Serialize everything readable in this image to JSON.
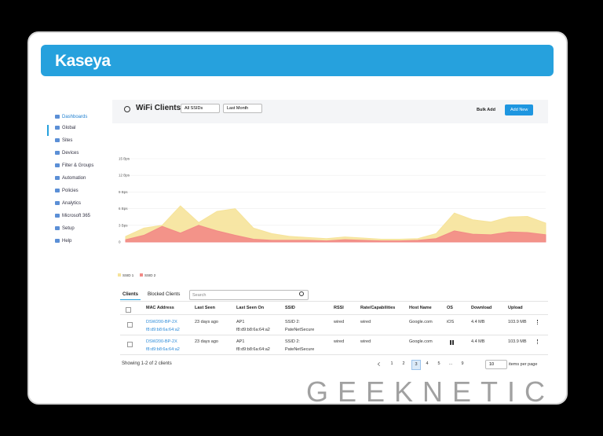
{
  "header": {
    "brand": "Kaseya"
  },
  "sidebar": {
    "items": [
      "Dashboards",
      "Global",
      "Sites",
      "Devices",
      "Filter & Groups",
      "Automation",
      "Policies",
      "Analytics",
      "Microsoft 365",
      "Setup",
      "Help"
    ]
  },
  "toolbar": {
    "title": "WiFi Clients",
    "ssid_filter": "All SSIDs",
    "period_filter": "Last Month",
    "bulk_add": "Bulk Add",
    "add_new": "Add New"
  },
  "chart": {
    "type": "area",
    "ylim": [
      0,
      15
    ],
    "yticks": [
      {
        "value": 0,
        "label": "0"
      },
      {
        "value": 3,
        "label": "3 Bps"
      },
      {
        "value": 6,
        "label": "6 Bps"
      },
      {
        "value": 9,
        "label": "9 Bps"
      },
      {
        "value": 12,
        "label": "12 Bps"
      },
      {
        "value": 15,
        "label": "15 Bps"
      }
    ],
    "series": [
      {
        "name": "SSID 1",
        "color": "#f6e39a",
        "values": [
          1,
          2.5,
          3,
          6.5,
          3.5,
          5.5,
          6,
          2.5,
          1.5,
          1,
          0.8,
          0.6,
          0.9,
          0.7,
          0.5,
          0.5,
          0.6,
          1.5,
          5.2,
          4,
          3.6,
          4.5,
          4.6,
          3.4
        ]
      },
      {
        "name": "SSID 2",
        "color": "#f28a86",
        "values": [
          0.4,
          1.2,
          2.8,
          1.6,
          3,
          2,
          1.2,
          0.5,
          0.3,
          0.3,
          0.3,
          0.2,
          0.4,
          0.3,
          0.2,
          0.2,
          0.3,
          0.6,
          2,
          1.4,
          1.3,
          1.8,
          1.7,
          1.3
        ]
      }
    ]
  },
  "table": {
    "tabs": [
      "Clients",
      "Blocked Clients"
    ],
    "search_placeholder": "Search",
    "columns": [
      "MAC Address",
      "Last Seen",
      "Last Seen On",
      "SSID",
      "RSSI",
      "Rate/Capabilities",
      "Host Name",
      "OS",
      "Download",
      "Upload"
    ],
    "rows": [
      [
        [
          "DSW200-BP-2X",
          "f8:d9:b8:6a:64:a2"
        ],
        [
          "23 days ago"
        ],
        [
          "AP1",
          "f8:d9:b8:6a:64:a2"
        ],
        [
          "SSID 2:",
          "PateNetSecure"
        ],
        [
          "wired"
        ],
        [
          "wired"
        ],
        [
          "Google.com"
        ],
        [
          "iOS"
        ],
        [
          "4.4 MB"
        ],
        [
          "103.9 MB"
        ]
      ],
      [
        [
          "DSW200-BP-2X",
          "f8:d9:b8:6a:64:a2"
        ],
        [
          "23 days ago"
        ],
        [
          "AP1",
          "f8:d9:b8:6a:64:a2"
        ],
        [
          "SSID 2:",
          "PateNetSecure"
        ],
        [
          "wired"
        ],
        [
          "wired"
        ],
        [
          "Google.com"
        ],
        [],
        [
          "4.4 MB"
        ],
        [
          "103.9 MB"
        ]
      ]
    ],
    "footer": "Showing 1-2 of 2 clients",
    "pages": [
      "1",
      "2",
      "3",
      "4",
      "5",
      "...",
      "9"
    ],
    "page_size": "10",
    "page_size_label": "items per page"
  },
  "watermark": "GEEKNETIC"
}
